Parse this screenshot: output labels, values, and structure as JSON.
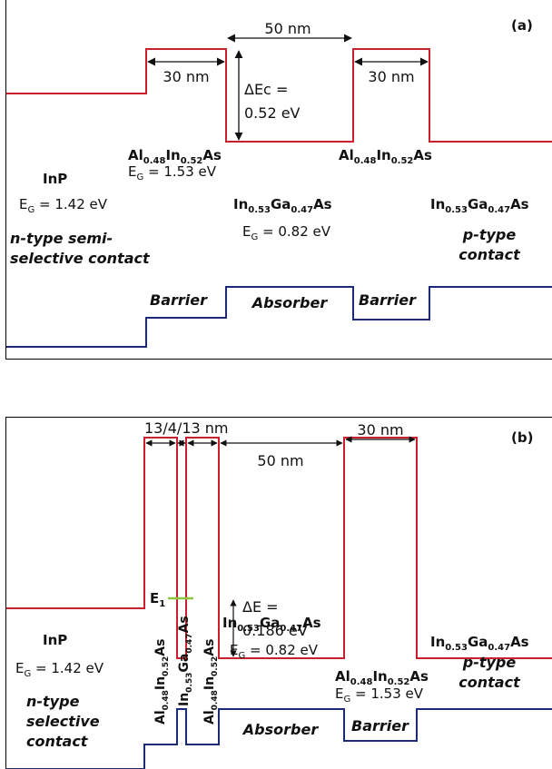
{
  "panel_a": {
    "label": "(a)",
    "well_width": "50 nm",
    "barrier_left_width": "30 nm",
    "barrier_right_width": "30 nm",
    "delta_ec_line1": "ΔEc =",
    "delta_ec_line2": "0.52 eV",
    "barrier_left": {
      "base1": "Al",
      "sub1": "0.48",
      "base2": "In",
      "sub2": "0.52",
      "base3": "As"
    },
    "barrier_left_eg": {
      "pre": "E",
      "sub": "G",
      "post": " = 1.53 eV"
    },
    "barrier_right": {
      "base1": "Al",
      "sub1": "0.48",
      "base2": "In",
      "sub2": "0.52",
      "base3": "As"
    },
    "inp": "InP",
    "inp_eg": {
      "pre": "E",
      "sub": "G",
      "post": " = 1.42 eV"
    },
    "absorber": {
      "base1": "In",
      "sub1": "0.53",
      "base2": "Ga",
      "sub2": "0.47",
      "base3": "As"
    },
    "absorber_eg": {
      "pre": "E",
      "sub": "G",
      "post": " = 0.82 eV"
    },
    "right_material": {
      "base1": "In",
      "sub1": "0.53",
      "base2": "Ga",
      "sub2": "0.47",
      "base3": "As"
    },
    "n_contact_line1": "n-type semi-",
    "n_contact_line2": "selective contact",
    "p_contact_line1": "p-type",
    "p_contact_line2": "contact",
    "barrier_label_left": "Barrier",
    "absorber_label": "Absorber",
    "barrier_label_right": "Barrier"
  },
  "panel_b": {
    "label": "(b)",
    "stack_width": "13/4/13 nm",
    "well_width": "50 nm",
    "barrier_width": "30 nm",
    "e1": {
      "base": "E",
      "sub": "1"
    },
    "delta_e_line1": "ΔE =",
    "delta_e_line2": "0.186 eV",
    "barrier_right": {
      "base1": "Al",
      "sub1": "0.48",
      "base2": "In",
      "sub2": "0.52",
      "base3": "As"
    },
    "barrier_right_eg": {
      "pre": "E",
      "sub": "G",
      "post": " = 1.53 eV"
    },
    "inp": "InP",
    "inp_eg": {
      "pre": "E",
      "sub": "G",
      "post": " = 1.42 eV"
    },
    "vert_barrier1": {
      "base1": "Al",
      "sub1": "0.48",
      "base2": "In",
      "sub2": "0.52",
      "base3": "As"
    },
    "vert_well": {
      "base1": "In",
      "sub1": "0.53",
      "base2": "Ga",
      "sub2": "0.47",
      "base3": "As"
    },
    "vert_barrier2": {
      "base1": "Al",
      "sub1": "0.48",
      "base2": "In",
      "sub2": "0.52",
      "base3": "As"
    },
    "absorber": {
      "base1": "In",
      "sub1": "0.53",
      "base2": "Ga",
      "sub2": "0.47",
      "base3": "As"
    },
    "absorber_eg": {
      "pre": "E",
      "sub": "G",
      "post": " = 0.82 eV"
    },
    "right_material": {
      "base1": "In",
      "sub1": "0.53",
      "base2": "Ga",
      "sub2": "0.47",
      "base3": "As"
    },
    "n_contact_line1": "n-type",
    "n_contact_line2": "selective",
    "n_contact_line3": "contact",
    "p_contact_line1": "p-type",
    "p_contact_line2": "contact",
    "absorber_label": "Absorber",
    "barrier_label": "Barrier"
  },
  "colors": {
    "conduction_band": "#cc1f2e",
    "valence_band": "#1c2a7a",
    "energy_level": "#8cc63f"
  }
}
